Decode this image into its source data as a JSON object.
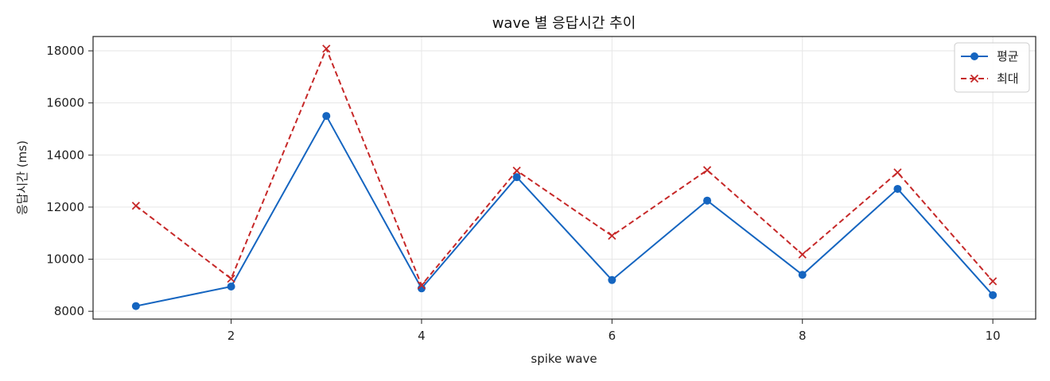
{
  "chart_data": {
    "type": "line",
    "title": "wave 별 응답시간 추이",
    "xlabel": "spike wave",
    "ylabel": "응답시간 (ms)",
    "x": [
      1,
      2,
      3,
      4,
      5,
      6,
      7,
      8,
      9,
      10
    ],
    "xlim": [
      0.55,
      10.45
    ],
    "ylim": [
      7700,
      18550
    ],
    "xticks": [
      2,
      4,
      6,
      8,
      10
    ],
    "yticks": [
      8000,
      10000,
      12000,
      14000,
      16000,
      18000
    ],
    "grid": true,
    "legend_position": "top-right",
    "series": [
      {
        "name": "평균",
        "color": "#1565c0",
        "line_style": "solid",
        "marker": "circle",
        "values": [
          8200,
          8950,
          15500,
          8880,
          13150,
          9200,
          12250,
          9400,
          12700,
          8620
        ]
      },
      {
        "name": "최대",
        "color": "#c62828",
        "line_style": "dashed",
        "marker": "x",
        "values": [
          12050,
          9250,
          18080,
          9000,
          13400,
          10900,
          13420,
          10180,
          13330,
          9150
        ]
      }
    ]
  }
}
